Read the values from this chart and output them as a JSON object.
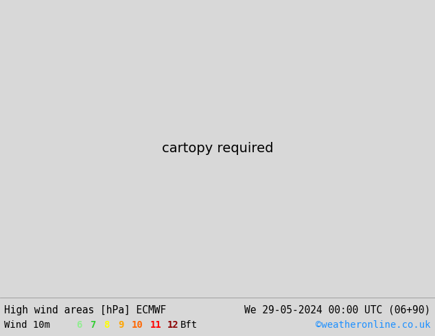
{
  "title_left": "High wind areas [hPa] ECMWF",
  "title_right": "We 29-05-2024 00:00 UTC (06+90)",
  "legend_label": "Wind 10m",
  "legend_bft_label": "Bft",
  "bft_values": [
    "6",
    "7",
    "8",
    "9",
    "10",
    "11",
    "12"
  ],
  "bft_colors": [
    "#90ee90",
    "#32cd32",
    "#ffff00",
    "#ffa500",
    "#ff6600",
    "#ff0000",
    "#8b0000"
  ],
  "copyright": "©weatheronline.co.uk",
  "copyright_color": "#1e90ff",
  "bg_color": "#d8d8d8",
  "ocean_color": "#d8d8d8",
  "land_color": "#c8e8b0",
  "mountain_color": "#b0b0b0",
  "bottom_bg": "#d8d8d8",
  "blue_isobar": "#0000ee",
  "red_isobar": "#ee0000",
  "black_isobar": "#000000",
  "title_fontsize": 10.5,
  "legend_fontsize": 10,
  "fig_width": 6.34,
  "fig_height": 4.9,
  "dpi": 100,
  "lon_min": -40,
  "lon_max": 50,
  "lat_min": 27,
  "lat_max": 72
}
